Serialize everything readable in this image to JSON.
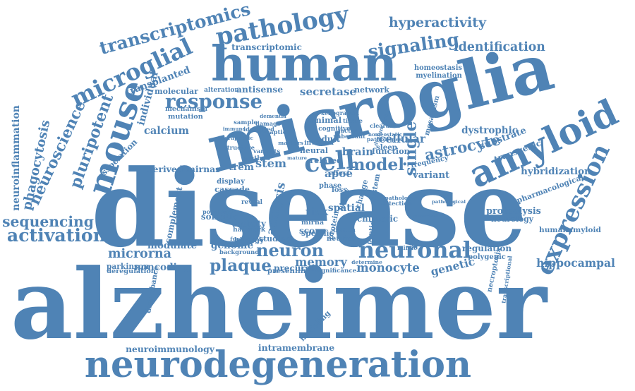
{
  "word_color": "#4f83b5",
  "background": "#ffffff",
  "words": [
    {
      "id": "alzheimer",
      "text": "alzheimer"
    },
    {
      "id": "disease",
      "text": "disease"
    },
    {
      "id": "microglia",
      "text": "microglia"
    },
    {
      "id": "human",
      "text": "human"
    },
    {
      "id": "neurodegeneration",
      "text": "neurodegeneration"
    },
    {
      "id": "mouse",
      "text": "mouse"
    },
    {
      "id": "amyloid",
      "text": "amyloid"
    },
    {
      "id": "expression",
      "text": "expression"
    },
    {
      "id": "microglial",
      "text": "microglial"
    },
    {
      "id": "pathology",
      "text": "pathology"
    },
    {
      "id": "neuronal",
      "text": "neuronal"
    },
    {
      "id": "cell",
      "text": "cell"
    },
    {
      "id": "neuron",
      "text": "neuron"
    },
    {
      "id": "model",
      "text": "model"
    },
    {
      "id": "response",
      "text": "response"
    },
    {
      "id": "signaling",
      "text": "signaling"
    },
    {
      "id": "transcriptomics",
      "text": "transcriptomics"
    },
    {
      "id": "hyperactivity",
      "text": "hyperactivity"
    },
    {
      "id": "identification",
      "text": "identification"
    },
    {
      "id": "sequencing",
      "text": "sequencing"
    },
    {
      "id": "activation",
      "text": "activation"
    },
    {
      "id": "pluripotent",
      "text": "pluripotent"
    },
    {
      "id": "neuroscience",
      "text": "neuroscience"
    },
    {
      "id": "calcium",
      "text": "calcium"
    },
    {
      "id": "stem",
      "text": "stem"
    },
    {
      "id": "brain",
      "text": "brain"
    },
    {
      "id": "single",
      "text": "single"
    },
    {
      "id": "astrocyte",
      "text": "astrocyte"
    },
    {
      "id": "plaque",
      "text": "plaque"
    },
    {
      "id": "monocyte",
      "text": "monocyte"
    },
    {
      "id": "genetic",
      "text": "genetic"
    },
    {
      "id": "microrna",
      "text": "microrna"
    },
    {
      "id": "noncoding",
      "text": "noncoding"
    },
    {
      "id": "hippocampal",
      "text": "hippocampal"
    },
    {
      "id": "neuroimmunology",
      "text": "neuroimmunology"
    },
    {
      "id": "intramembrane",
      "text": "intramembrane"
    },
    {
      "id": "secretase",
      "text": "secretase"
    },
    {
      "id": "antisense",
      "text": "antisense"
    },
    {
      "id": "transcriptomic",
      "text": "transcriptomic"
    },
    {
      "id": "phagocytosis",
      "text": "phagocytosis"
    },
    {
      "id": "neuroinflammation",
      "text": "neuroinflammation"
    },
    {
      "id": "trem",
      "text": "trem"
    },
    {
      "id": "apoe",
      "text": "apoe"
    },
    {
      "id": "risk",
      "text": "risk"
    },
    {
      "id": "memory",
      "text": "memory"
    },
    {
      "id": "precursor",
      "text": "precursor"
    },
    {
      "id": "cellular",
      "text": "cellular"
    },
    {
      "id": "mosaicism",
      "text": "mosaicism"
    },
    {
      "id": "dystrophic",
      "text": "dystrophic"
    },
    {
      "id": "substrate",
      "text": "substrate"
    },
    {
      "id": "transgenic",
      "text": "transgenic"
    },
    {
      "id": "variant",
      "text": "variant"
    },
    {
      "id": "hybridization",
      "text": "hybridization"
    },
    {
      "id": "pharmacological",
      "text": "pharmacological"
    },
    {
      "id": "proteolysis",
      "text": "proteolysis"
    },
    {
      "id": "neurology",
      "text": "neurology"
    },
    {
      "id": "humanamyloid",
      "text": "humanamyloid"
    },
    {
      "id": "regulation",
      "text": "regulation"
    },
    {
      "id": "polygenic",
      "text": "polygenic"
    },
    {
      "id": "necroptosis",
      "text": "necroptosis"
    },
    {
      "id": "transcriptional",
      "text": "transcriptional"
    },
    {
      "id": "homeostasis",
      "text": "homeostasis"
    },
    {
      "id": "myelination",
      "text": "myelination"
    },
    {
      "id": "network",
      "text": "network"
    },
    {
      "id": "transplanted",
      "text": "transplanted"
    },
    {
      "id": "molecular",
      "text": "molecular"
    },
    {
      "id": "individual",
      "text": "individual"
    },
    {
      "id": "alteration",
      "text": "alteration"
    },
    {
      "id": "mechanism",
      "text": "mechanism"
    },
    {
      "id": "mutation",
      "text": "mutation"
    },
    {
      "id": "association",
      "text": "association"
    },
    {
      "id": "derived-mirnas",
      "text": "derived mirnas"
    },
    {
      "id": "method",
      "text": "method"
    },
    {
      "id": "display",
      "text": "display"
    },
    {
      "id": "cascade",
      "text": "cascade"
    },
    {
      "id": "complement",
      "text": "complement"
    },
    {
      "id": "somatic",
      "text": "somatic"
    },
    {
      "id": "activity",
      "text": "activity"
    },
    {
      "id": "modulate",
      "text": "modulate"
    },
    {
      "id": "parkinson",
      "text": "parkinson"
    },
    {
      "id": "deregulation",
      "text": "deregulation"
    },
    {
      "id": "genome",
      "text": "genome"
    },
    {
      "id": "presenilin",
      "text": "presenilin"
    },
    {
      "id": "disturbance",
      "text": "disturbance"
    },
    {
      "id": "modeling",
      "text": "modeling"
    },
    {
      "id": "spatial",
      "text": "spatial"
    },
    {
      "id": "chimeric",
      "text": "chimeric"
    },
    {
      "id": "animal",
      "text": "animal"
    },
    {
      "id": "function",
      "text": "function"
    },
    {
      "id": "related",
      "text": "related"
    },
    {
      "id": "neural",
      "text": "neural"
    },
    {
      "id": "adult",
      "text": "adult"
    },
    {
      "id": "score",
      "text": "score"
    },
    {
      "id": "mirna",
      "text": "mirna"
    },
    {
      "id": "specific",
      "text": "specific"
    },
    {
      "id": "studies",
      "text": "studies"
    },
    {
      "id": "analysis",
      "text": "analysis"
    },
    {
      "id": "frequency",
      "text": "frequency"
    },
    {
      "id": "involved",
      "text": "involved"
    },
    {
      "id": "xenografted",
      "text": "xenografted"
    },
    {
      "id": "cognitive",
      "text": "cognitive"
    },
    {
      "id": "biology",
      "text": "biology"
    },
    {
      "id": "population",
      "text": "population"
    },
    {
      "id": "hallmark",
      "text": "hallmark"
    },
    {
      "id": "study",
      "text": "study"
    },
    {
      "id": "protein",
      "text": "protein"
    },
    {
      "id": "peptide",
      "text": "peptide"
    },
    {
      "id": "change",
      "text": "change"
    },
    {
      "id": "system",
      "text": "system"
    },
    {
      "id": "phase",
      "text": "phase"
    },
    {
      "id": "sleep",
      "text": "sleep"
    },
    {
      "id": "death",
      "text": "death"
    },
    {
      "id": "neurite",
      "text": "neurite"
    },
    {
      "id": "effect",
      "text": "effect"
    },
    {
      "id": "loss",
      "text": "loss"
    },
    {
      "id": "determine",
      "text": "determine"
    },
    {
      "id": "significance",
      "text": "significance"
    },
    {
      "id": "background",
      "text": "background"
    },
    {
      "id": "pathologic",
      "text": "pathologic"
    },
    {
      "id": "detection",
      "text": "detection"
    },
    {
      "id": "transmission",
      "text": "transmission"
    },
    {
      "id": "pathological",
      "text": "pathological"
    },
    {
      "id": "mimic",
      "text": "mimic"
    },
    {
      "id": "dysfunction",
      "text": "dysfunction"
    },
    {
      "id": "clearance",
      "text": "clearance"
    },
    {
      "id": "homeostatic",
      "text": "homeostatic"
    },
    {
      "id": "pathologies",
      "text": "pathologies"
    },
    {
      "id": "aberrant",
      "text": "aberrant"
    },
    {
      "id": "factor",
      "text": "factor"
    },
    {
      "id": "tissue",
      "text": "tissue"
    },
    {
      "id": "mature",
      "text": "mature"
    },
    {
      "id": "dementia",
      "text": "dementia"
    },
    {
      "id": "identified",
      "text": "identified"
    },
    {
      "id": "reveal",
      "text": "reveal"
    },
    {
      "id": "sample",
      "text": "sample"
    },
    {
      "id": "therapeutic",
      "text": "therapeutic"
    },
    {
      "id": "structure",
      "text": "structure"
    },
    {
      "id": "damage",
      "text": "damage"
    },
    {
      "id": "synaptic",
      "text": "synaptic"
    },
    {
      "id": "immune",
      "text": "immune"
    },
    {
      "id": "variants",
      "text": "variants"
    },
    {
      "id": "functional",
      "text": "functional"
    },
    {
      "id": "markers",
      "text": "markers"
    }
  ]
}
